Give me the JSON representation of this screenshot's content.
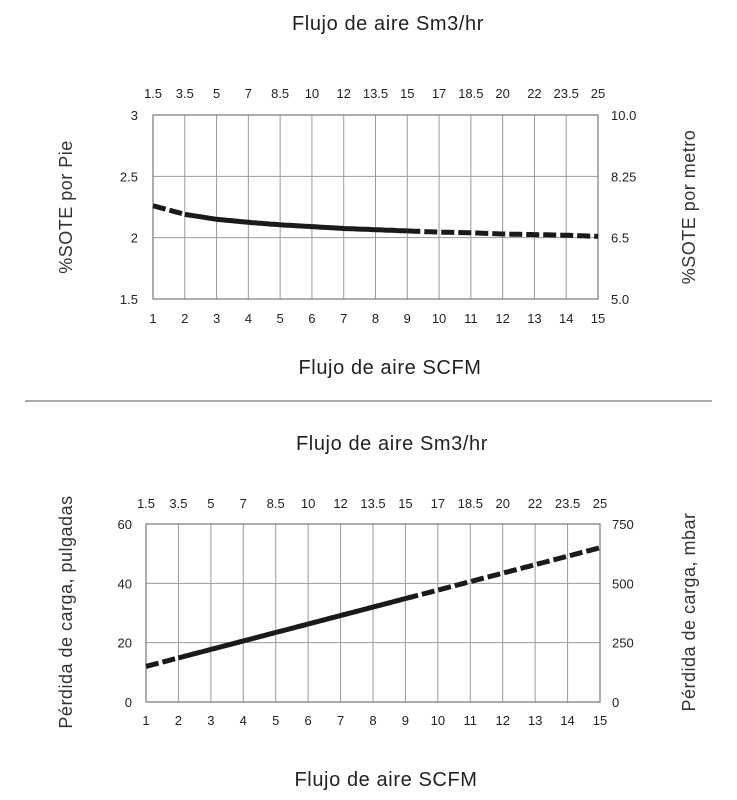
{
  "chart_data": [
    {
      "type": "line",
      "title": "Flujo de aire Sm3/hr",
      "xlabel": "Flujo de aire SCFM",
      "ylabel": "%SOTE por Pie",
      "ylabel_right": "%SOTE por metro",
      "x_ticks": [
        "1",
        "2",
        "3",
        "4",
        "5",
        "6",
        "7",
        "8",
        "9",
        "10",
        "11",
        "12",
        "13",
        "14",
        "15"
      ],
      "x_top_ticks": [
        "1.5",
        "3.5",
        "5",
        "7",
        "8.5",
        "10",
        "12",
        "13.5",
        "15",
        "17",
        "18.5",
        "20",
        "22",
        "23.5",
        "25"
      ],
      "y_ticks": [
        "1.5",
        "2",
        "2.5",
        "3"
      ],
      "y_right_ticks": [
        "5.0",
        "6.5",
        "8.25",
        "10.0"
      ],
      "xlim": [
        1,
        15
      ],
      "ylim": [
        1.5,
        3
      ],
      "grid": true,
      "series": [
        {
          "x": [
            1,
            2,
            3,
            4,
            5,
            6,
            7,
            8,
            9,
            10,
            11,
            12,
            13,
            14,
            15
          ],
          "values": [
            2.26,
            2.19,
            2.15,
            2.125,
            2.105,
            2.09,
            2.075,
            2.065,
            2.055,
            2.045,
            2.04,
            2.03,
            2.025,
            2.02,
            2.01
          ],
          "solid_range": [
            2,
            9
          ]
        }
      ]
    },
    {
      "type": "line",
      "title": "Flujo de aire Sm3/hr",
      "xlabel": "Flujo de aire SCFM",
      "ylabel": "Pérdida de carga, pulgadas",
      "ylabel_right": "Pérdida de carga, mbar",
      "x_ticks": [
        "1",
        "2",
        "3",
        "4",
        "5",
        "6",
        "7",
        "8",
        "9",
        "10",
        "11",
        "12",
        "13",
        "14",
        "15"
      ],
      "x_top_ticks": [
        "1.5",
        "3.5",
        "5",
        "7",
        "8.5",
        "10",
        "12",
        "13.5",
        "15",
        "17",
        "18.5",
        "20",
        "22",
        "23.5",
        "25"
      ],
      "y_ticks": [
        "0",
        "20",
        "40",
        "60"
      ],
      "y_right_ticks": [
        "0",
        "250",
        "500",
        "750"
      ],
      "xlim": [
        1,
        15
      ],
      "ylim": [
        0,
        60
      ],
      "grid": true,
      "series": [
        {
          "x": [
            1,
            15
          ],
          "values": [
            12,
            52
          ],
          "solid_range": [
            2,
            9
          ]
        }
      ]
    }
  ],
  "colors": {
    "line": "#1a1a1a",
    "grid": "#9a9a9a",
    "divider": "#555555"
  }
}
